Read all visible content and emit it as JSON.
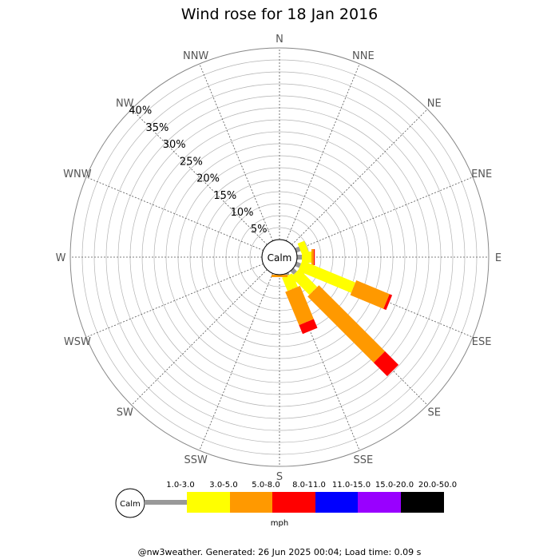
{
  "chart_data": {
    "type": "wind-rose",
    "title": "Wind rose for 18 Jan 2016",
    "directions": [
      "N",
      "NNE",
      "NE",
      "ENE",
      "E",
      "ESE",
      "SE",
      "SSE",
      "S",
      "SSW",
      "SW",
      "WSW",
      "W",
      "WNW",
      "NW",
      "NNW"
    ],
    "radial_ticks": [
      "5%",
      "10%",
      "15%",
      "20%",
      "25%",
      "30%",
      "35%",
      "40%"
    ],
    "radial_max": 40,
    "calm_label": "Calm",
    "unit": "mph",
    "speed_bins": [
      {
        "label": "1.0-3.0",
        "color": "#999999"
      },
      {
        "label": "3.0-5.0",
        "color": "#ffff00"
      },
      {
        "label": "5.0-8.0",
        "color": "#ff9900"
      },
      {
        "label": "8.0-11.0",
        "color": "#ff0000"
      },
      {
        "label": "11.0-15.0",
        "color": "#0000ff"
      },
      {
        "label": "15.0-20.0",
        "color": "#9900ff"
      },
      {
        "label": "20.0-50.0",
        "color": "#000000"
      }
    ],
    "series": [
      {
        "direction": "ENE",
        "values": [
          0.9,
          1.5,
          0,
          0,
          0,
          0,
          0
        ]
      },
      {
        "direction": "E",
        "values": [
          1.0,
          2.0,
          0.5,
          0.2,
          0,
          0,
          0
        ]
      },
      {
        "direction": "ESE",
        "values": [
          1.0,
          12.0,
          7.5,
          0.6,
          0,
          0,
          0
        ]
      },
      {
        "direction": "SE",
        "values": [
          1.0,
          5.3,
          19.5,
          4.0,
          0,
          0,
          0
        ]
      },
      {
        "direction": "SSE",
        "values": [
          0.5,
          3.0,
          7.5,
          2.0,
          0,
          0,
          0
        ]
      },
      {
        "direction": "S",
        "values": [
          0,
          0,
          0.5,
          0,
          0,
          0,
          0
        ]
      }
    ]
  },
  "footer": "@nw3weather. Generated: 26 Jun 2025 00:04; Load time: 0.09 s"
}
